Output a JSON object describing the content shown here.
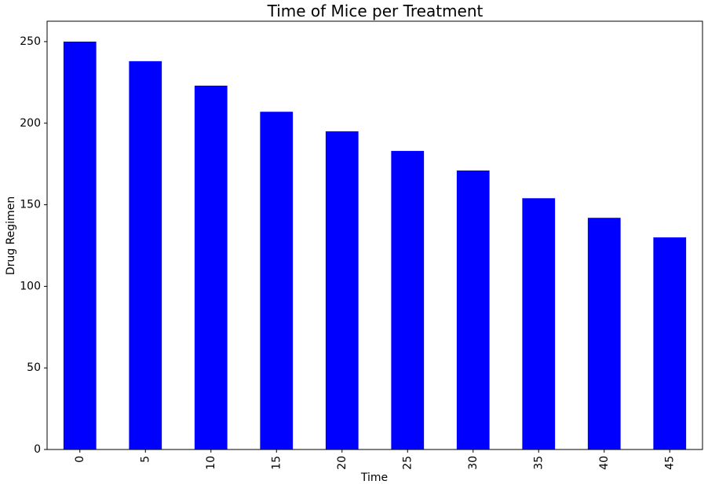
{
  "chart_data": {
    "type": "bar",
    "title": "Time of Mice per Treatment",
    "xlabel": "Time",
    "ylabel": "Drug Regimen",
    "categories": [
      "0",
      "5",
      "10",
      "15",
      "20",
      "25",
      "30",
      "35",
      "40",
      "45"
    ],
    "values": [
      250,
      238,
      223,
      207,
      195,
      183,
      171,
      154,
      142,
      130
    ],
    "ylim": [
      0,
      262.5
    ],
    "yticks": [
      "0",
      "50",
      "100",
      "150",
      "200",
      "250"
    ],
    "bar_color": "#0000ff",
    "grid": false,
    "legend": "none"
  }
}
